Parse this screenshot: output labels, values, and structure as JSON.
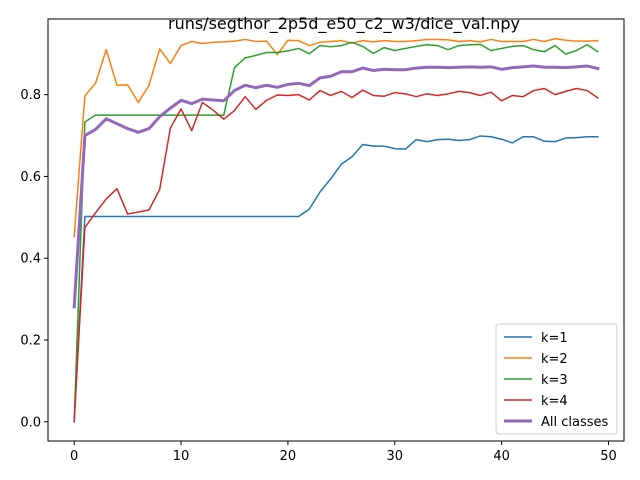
{
  "chart_data": {
    "type": "line",
    "title": "runs/segthor_2p5d_e50_c2_w3/dice_val.npy",
    "xlabel": "",
    "ylabel": "",
    "xlim": [
      -2.45,
      51.45
    ],
    "ylim": [
      -0.047,
      0.985
    ],
    "xticks": [
      0,
      10,
      20,
      30,
      40,
      50
    ],
    "yticks": [
      0.0,
      0.2,
      0.4,
      0.6,
      0.8
    ],
    "ytick_labels": [
      "0.0",
      "0.2",
      "0.4",
      "0.6",
      "0.8"
    ],
    "grid": false,
    "legend_position": "lower-right",
    "x": [
      0,
      1,
      2,
      3,
      4,
      5,
      6,
      7,
      8,
      9,
      10,
      11,
      12,
      13,
      14,
      15,
      16,
      17,
      18,
      19,
      20,
      21,
      22,
      23,
      24,
      25,
      26,
      27,
      28,
      29,
      30,
      31,
      32,
      33,
      34,
      35,
      36,
      37,
      38,
      39,
      40,
      41,
      42,
      43,
      44,
      45,
      46,
      47,
      48,
      49
    ],
    "series": [
      {
        "name": "k=1",
        "color": "#1f77b4",
        "linewidth": 1.5,
        "values": [
          0.0,
          0.502,
          0.502,
          0.502,
          0.502,
          0.502,
          0.502,
          0.502,
          0.502,
          0.502,
          0.502,
          0.502,
          0.502,
          0.502,
          0.502,
          0.502,
          0.502,
          0.502,
          0.502,
          0.502,
          0.502,
          0.502,
          0.52,
          0.562,
          0.594,
          0.63,
          0.648,
          0.678,
          0.674,
          0.674,
          0.668,
          0.667,
          0.69,
          0.685,
          0.69,
          0.691,
          0.688,
          0.69,
          0.699,
          0.697,
          0.691,
          0.682,
          0.697,
          0.697,
          0.686,
          0.685,
          0.694,
          0.695,
          0.697,
          0.697
        ]
      },
      {
        "name": "k=2",
        "color": "#ff7f0e",
        "linewidth": 1.5,
        "values": [
          0.453,
          0.797,
          0.828,
          0.91,
          0.823,
          0.824,
          0.781,
          0.823,
          0.912,
          0.876,
          0.92,
          0.93,
          0.925,
          0.928,
          0.929,
          0.931,
          0.935,
          0.93,
          0.931,
          0.898,
          0.933,
          0.932,
          0.92,
          0.928,
          0.93,
          0.932,
          0.926,
          0.932,
          0.929,
          0.932,
          0.93,
          0.93,
          0.932,
          0.935,
          0.935,
          0.934,
          0.93,
          0.932,
          0.929,
          0.935,
          0.93,
          0.93,
          0.93,
          0.935,
          0.93,
          0.937,
          0.933,
          0.931,
          0.931,
          0.932
        ]
      },
      {
        "name": "k=3",
        "color": "#2ca02c",
        "linewidth": 1.5,
        "values": [
          0.0,
          0.733,
          0.75,
          0.75,
          0.75,
          0.75,
          0.75,
          0.75,
          0.75,
          0.75,
          0.75,
          0.75,
          0.75,
          0.75,
          0.75,
          0.866,
          0.89,
          0.896,
          0.903,
          0.903,
          0.907,
          0.913,
          0.9,
          0.92,
          0.917,
          0.92,
          0.928,
          0.918,
          0.901,
          0.915,
          0.908,
          0.913,
          0.918,
          0.922,
          0.92,
          0.91,
          0.92,
          0.922,
          0.923,
          0.908,
          0.913,
          0.918,
          0.92,
          0.91,
          0.905,
          0.92,
          0.899,
          0.908,
          0.922,
          0.905
        ]
      },
      {
        "name": "k=4",
        "color": "#d62728",
        "linewidth": 1.5,
        "values": [
          0.0,
          0.475,
          0.511,
          0.545,
          0.57,
          0.508,
          0.513,
          0.518,
          0.568,
          0.718,
          0.765,
          0.712,
          0.781,
          0.762,
          0.74,
          0.761,
          0.795,
          0.764,
          0.786,
          0.799,
          0.798,
          0.8,
          0.787,
          0.81,
          0.798,
          0.808,
          0.793,
          0.811,
          0.798,
          0.796,
          0.805,
          0.802,
          0.795,
          0.802,
          0.798,
          0.802,
          0.808,
          0.805,
          0.798,
          0.806,
          0.785,
          0.798,
          0.795,
          0.81,
          0.815,
          0.8,
          0.808,
          0.815,
          0.81,
          0.792
        ]
      },
      {
        "name": "All classes",
        "color": "#9467bd",
        "linewidth": 3,
        "values": [
          0.281,
          0.7,
          0.715,
          0.741,
          0.729,
          0.717,
          0.708,
          0.717,
          0.746,
          0.767,
          0.786,
          0.778,
          0.789,
          0.787,
          0.785,
          0.81,
          0.823,
          0.817,
          0.823,
          0.818,
          0.825,
          0.828,
          0.822,
          0.841,
          0.845,
          0.856,
          0.856,
          0.865,
          0.859,
          0.862,
          0.861,
          0.861,
          0.865,
          0.867,
          0.867,
          0.866,
          0.867,
          0.868,
          0.867,
          0.868,
          0.862,
          0.866,
          0.868,
          0.87,
          0.867,
          0.867,
          0.866,
          0.868,
          0.87,
          0.864
        ]
      }
    ]
  }
}
